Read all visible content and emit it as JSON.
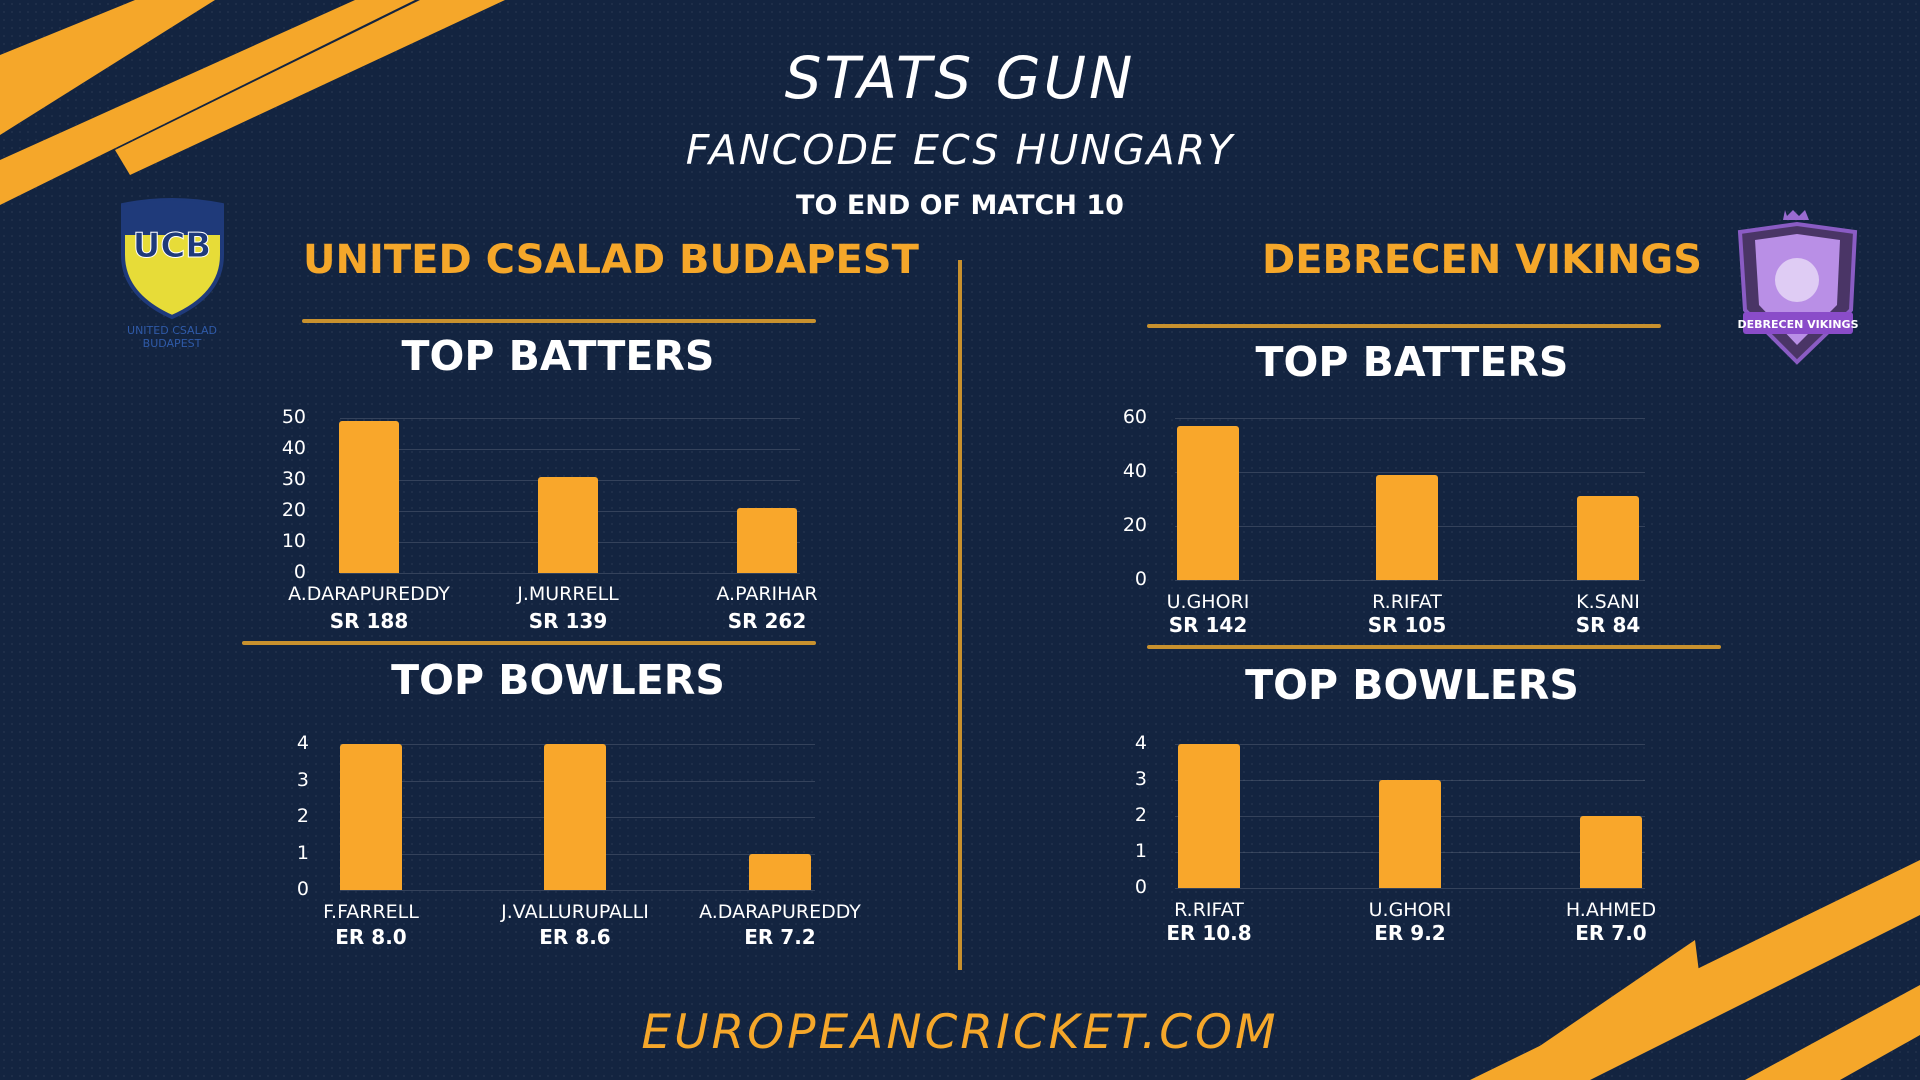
{
  "header": {
    "title": "STATS GUN",
    "subtitle": "FANCODE ECS HUNGARY",
    "period": "TO END OF MATCH 10",
    "site": "EUROPEANCRICKET.COM"
  },
  "teams": {
    "left": {
      "name": "UNITED CSALAD BUDAPEST",
      "logo_text": "UCB",
      "logo_caption": "UNITED CSALAD BUDAPEST"
    },
    "right": {
      "name": "DEBRECEN VIKINGS",
      "logo_text": "DEBRECEN VIKINGS"
    }
  },
  "sections": {
    "batters": "TOP BATTERS",
    "bowlers": "TOP BOWLERS"
  },
  "colors": {
    "background": "#132440",
    "accent": "#f5a72a",
    "bar": "#f9a72b",
    "text": "#ffffff"
  },
  "chart_data": [
    {
      "type": "bar",
      "team": "UNITED CSALAD BUDAPEST",
      "title": "TOP BATTERS",
      "categories": [
        "A.DARAPUREDDY",
        "J.MURRELL",
        "A.PARIHAR"
      ],
      "values": [
        49,
        31,
        21
      ],
      "annotations": [
        "SR 188",
        "SR 139",
        "SR 262"
      ],
      "yticks": [
        "0",
        "10",
        "20",
        "30",
        "40",
        "50"
      ],
      "ylim": [
        0,
        50
      ],
      "grid": true
    },
    {
      "type": "bar",
      "team": "UNITED CSALAD BUDAPEST",
      "title": "TOP BOWLERS",
      "categories": [
        "F.FARRELL",
        "J.VALLURUPALLI",
        "A.DARAPUREDDY"
      ],
      "values": [
        4,
        4,
        1
      ],
      "annotations": [
        "ER 8.0",
        "ER 8.6",
        "ER 7.2"
      ],
      "yticks": [
        "0",
        "1",
        "2",
        "3",
        "4"
      ],
      "ylim": [
        0,
        4
      ],
      "grid": true
    },
    {
      "type": "bar",
      "team": "DEBRECEN VIKINGS",
      "title": "TOP BATTERS",
      "categories": [
        "U.GHORI",
        "R.RIFAT",
        "K.SANI"
      ],
      "values": [
        57,
        39,
        31
      ],
      "annotations": [
        "SR 142",
        "SR 105",
        "SR 84"
      ],
      "yticks": [
        "0",
        "20",
        "40",
        "60"
      ],
      "ylim": [
        0,
        60
      ],
      "grid": true
    },
    {
      "type": "bar",
      "team": "DEBRECEN VIKINGS",
      "title": "TOP BOWLERS",
      "categories": [
        "R.RIFAT",
        "U.GHORI",
        "H.AHMED"
      ],
      "values": [
        4,
        3,
        2
      ],
      "annotations": [
        "ER 10.8",
        "ER 9.2",
        "ER 7.0"
      ],
      "yticks": [
        "0",
        "1",
        "2",
        "3",
        "4"
      ],
      "ylim": [
        0,
        4
      ],
      "grid": true
    }
  ]
}
